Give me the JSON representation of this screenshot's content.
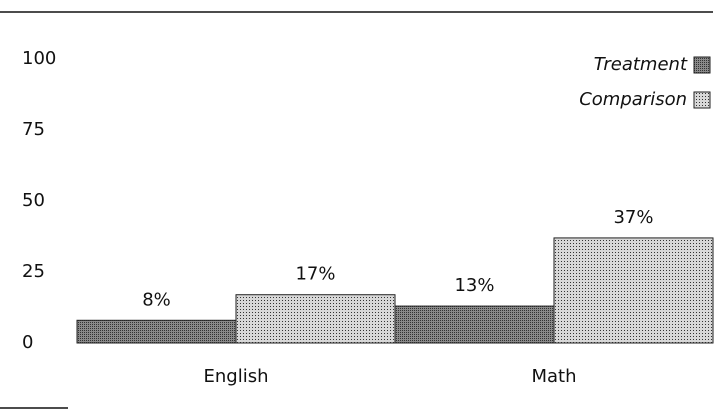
{
  "chart_data": {
    "type": "bar",
    "categories": [
      "English",
      "Math"
    ],
    "series": [
      {
        "name": "Treatment",
        "color": "#8a8a8a",
        "values": [
          8,
          13
        ],
        "value_labels": [
          "8%",
          "13%"
        ]
      },
      {
        "name": "Comparison",
        "color": "#d8d8d8",
        "values": [
          17,
          37
        ],
        "value_labels": [
          "17%",
          "37%"
        ]
      }
    ],
    "ylim": [
      0,
      100
    ],
    "yticks": [
      0,
      25,
      50,
      75,
      100
    ],
    "grid": false,
    "legend": "upper right"
  }
}
